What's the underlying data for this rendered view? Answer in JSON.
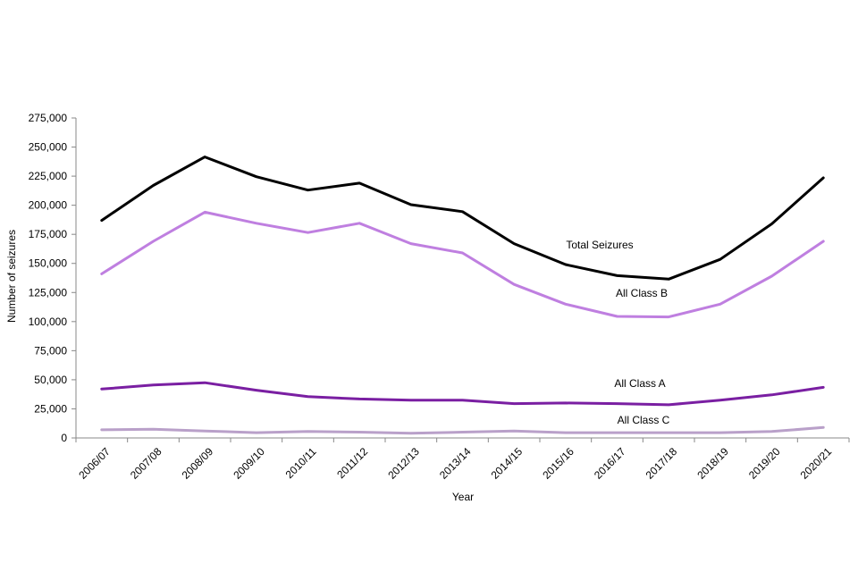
{
  "chart_data": {
    "type": "line",
    "title": "",
    "xlabel": "Year",
    "ylabel": "Number of seizures",
    "ylim": [
      0,
      275000
    ],
    "yticks": [
      0,
      25000,
      50000,
      75000,
      100000,
      125000,
      150000,
      175000,
      200000,
      225000,
      250000,
      275000
    ],
    "ytick_labels": [
      "0",
      "25,000",
      "50,000",
      "75,000",
      "100,000",
      "125,000",
      "150,000",
      "175,000",
      "200,000",
      "225,000",
      "250,000",
      "275,000"
    ],
    "categories": [
      "2006/07",
      "2007/08",
      "2008/09",
      "2009/10",
      "2010/11",
      "2011/12",
      "2012/13",
      "2013/14",
      "2014/15",
      "2015/16",
      "2016/17",
      "2017/18",
      "2018/19",
      "2019/20",
      "2020/21"
    ],
    "grid": false,
    "legend": "none",
    "series": [
      {
        "name": "Total Seizures",
        "color": "#000000",
        "values": [
          187000,
          217000,
          241500,
          224500,
          213000,
          219000,
          200500,
          194500,
          167000,
          149000,
          139500,
          136500,
          153500,
          184000,
          223500
        ]
      },
      {
        "name": "All Class B",
        "color": "#bf7fe0",
        "values": [
          141000,
          169000,
          194000,
          184500,
          176500,
          184500,
          167000,
          159000,
          132000,
          115000,
          104500,
          104000,
          115000,
          139000,
          169000
        ]
      },
      {
        "name": "All Class A",
        "color": "#7a1fa2",
        "values": [
          42000,
          45500,
          47500,
          41000,
          35500,
          33500,
          32500,
          32500,
          29500,
          30000,
          29500,
          28500,
          32500,
          37000,
          43500
        ]
      },
      {
        "name": "All Class C",
        "color": "#b9a0c9",
        "values": [
          7000,
          7500,
          6000,
          4500,
          5500,
          5000,
          4000,
          5000,
          6000,
          4500,
          4500,
          4500,
          4500,
          5500,
          9000
        ]
      }
    ]
  }
}
